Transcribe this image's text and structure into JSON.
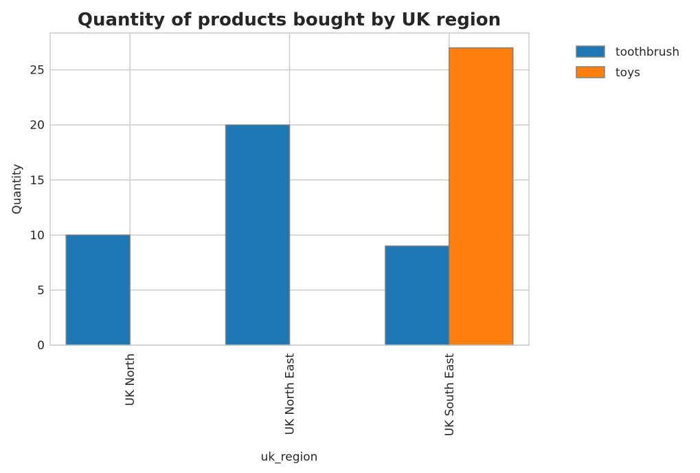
{
  "chart_data": {
    "type": "bar",
    "title": "Quantity of products bought by UK region",
    "xlabel": "uk_region",
    "ylabel": "Quantity",
    "categories": [
      "UK North",
      "UK North East",
      "UK South East"
    ],
    "series": [
      {
        "name": "toothbrush",
        "values": [
          10,
          20,
          9
        ],
        "color": "#1f77b4"
      },
      {
        "name": "toys",
        "values": [
          0,
          0,
          27
        ],
        "color": "#ff7f0e"
      }
    ],
    "ylim": [
      0,
      28.35
    ],
    "yticks": [
      "0",
      "5",
      "10",
      "15",
      "20",
      "25"
    ],
    "grid": true,
    "legend": "outside-top-right",
    "bar_edge_color": "#808080"
  }
}
